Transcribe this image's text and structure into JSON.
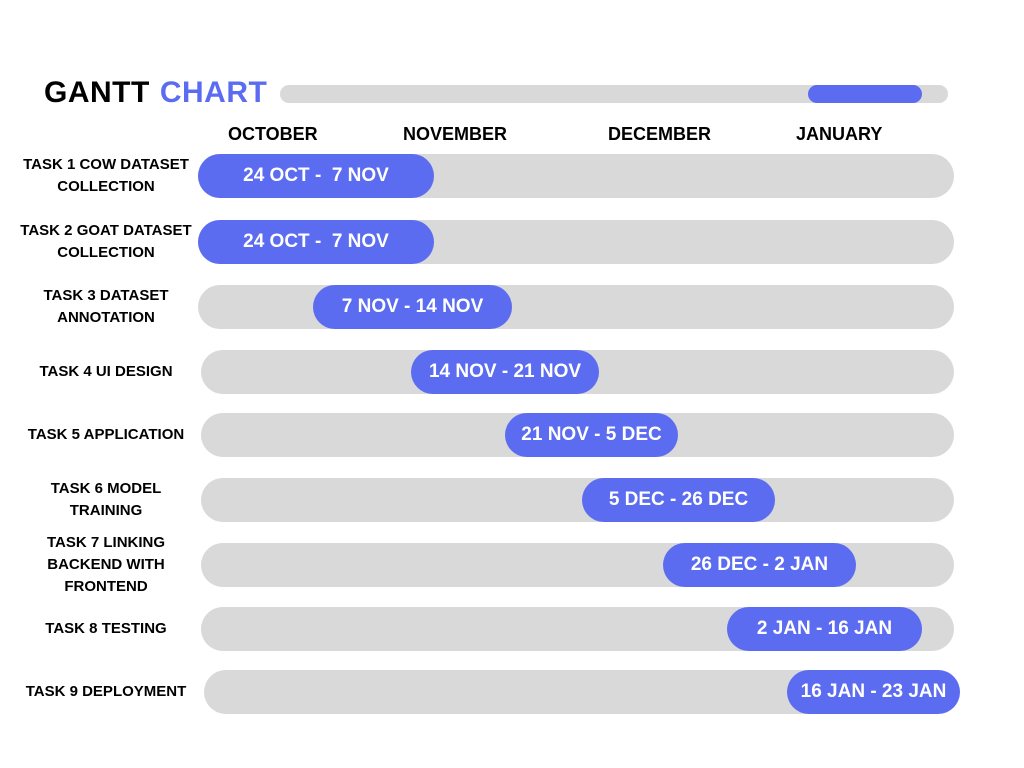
{
  "chart_data": {
    "type": "gantt",
    "title_word_1": "GANTT",
    "title_word_2": "CHART",
    "months": [
      "OCTOBER",
      "NOVEMBER",
      "DECEMBER",
      "JANUARY"
    ],
    "tasks": [
      {
        "name": "TASK 1 COW DATASET\nCOLLECTION",
        "start": "24 OCT",
        "end": "7 NOV",
        "range_label": "24 OCT -  7 NOV"
      },
      {
        "name": "TASK 2 GOAT DATASET\nCOLLECTION",
        "start": "24 OCT",
        "end": "7 NOV",
        "range_label": "24 OCT -  7 NOV"
      },
      {
        "name": "TASK 3 DATASET\nANNOTATION",
        "start": "7 NOV",
        "end": "14 NOV",
        "range_label": "7 NOV - 14 NOV"
      },
      {
        "name": "TASK 4 UI DESIGN",
        "start": "14 NOV",
        "end": "21 NOV",
        "range_label": "14 NOV - 21 NOV"
      },
      {
        "name": "TASK 5 APPLICATION",
        "start": "21 NOV",
        "end": "5 DEC",
        "range_label": "21 NOV - 5 DEC"
      },
      {
        "name": "TASK 6 MODEL\nTRAINING",
        "start": "5 DEC",
        "end": "26 DEC",
        "range_label": "5 DEC - 26 DEC"
      },
      {
        "name": "TASK 7 LINKING\nBACKEND WITH\nFRONTEND",
        "start": "26 DEC",
        "end": "2 JAN",
        "range_label": "26 DEC - 2 JAN"
      },
      {
        "name": "TASK 8 TESTING",
        "start": "2 JAN",
        "end": "16 JAN",
        "range_label": "2 JAN - 16 JAN"
      },
      {
        "name": "TASK 9 DEPLOYMENT",
        "start": "16 JAN",
        "end": "23 JAN",
        "range_label": "16 JAN - 23 JAN"
      }
    ],
    "colors": {
      "accent": "#5b6cf0",
      "track": "#d9d9d9",
      "text": "#000000",
      "bar_text": "#ffffff"
    }
  }
}
